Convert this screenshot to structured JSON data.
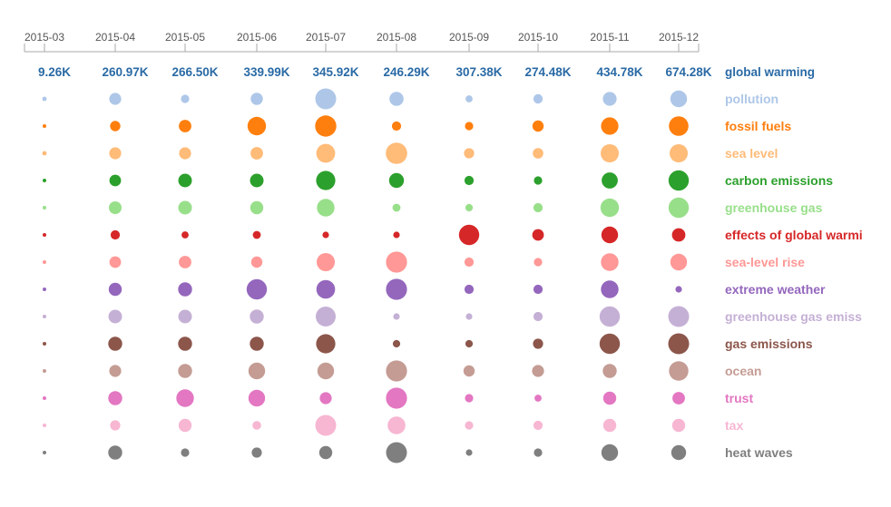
{
  "chart_data": {
    "type": "scatter",
    "x": [
      "2015-03",
      "2015-04",
      "2015-05",
      "2015-06",
      "2015-07",
      "2015-08",
      "2015-09",
      "2015-10",
      "2015-11",
      "2015-12"
    ],
    "totals_label": "global warming",
    "totals": [
      "9.26K",
      "260.97K",
      "266.50K",
      "339.99K",
      "345.92K",
      "246.29K",
      "307.38K",
      "274.48K",
      "434.78K",
      "674.28K"
    ],
    "series": [
      {
        "name": "pollution",
        "color": "#aec7e8",
        "values": [
          2.4,
          6.6,
          4.6,
          6.7,
          11.5,
          7.8,
          3.9,
          5.2,
          7.6,
          9.2
        ]
      },
      {
        "name": "fossil fuels",
        "color": "#ff7f0e",
        "values": [
          2,
          5.7,
          6.9,
          10.2,
          11.7,
          5.1,
          4.6,
          6.2,
          9.6,
          10.8
        ]
      },
      {
        "name": "sea level",
        "color": "#ffbb78",
        "values": [
          2.4,
          6.6,
          6.6,
          6.9,
          10.4,
          11.8,
          5.6,
          5.8,
          10,
          10
        ]
      },
      {
        "name": "carbon emissions",
        "color": "#2ca02c",
        "values": [
          2,
          6.4,
          7.5,
          7.5,
          10.6,
          8.2,
          5.1,
          4.6,
          8.9,
          11.2
        ]
      },
      {
        "name": "greenhouse gas",
        "color": "#98df8a",
        "values": [
          2,
          7,
          7.5,
          7.2,
          9.7,
          4.4,
          4.1,
          5.1,
          10.2,
          11.2
        ]
      },
      {
        "name": "effects of global warming",
        "color": "#d62728",
        "values": [
          2,
          5.1,
          3.9,
          4.4,
          3.6,
          3.6,
          11.2,
          6.4,
          9.2,
          7.4
        ]
      },
      {
        "name": "sea-level rise",
        "color": "#ff9896",
        "values": [
          2,
          6.4,
          6.9,
          6.2,
          10,
          11.6,
          5.1,
          4.6,
          9.7,
          9.2
        ]
      },
      {
        "name": "extreme weather",
        "color": "#9467bd",
        "values": [
          2,
          7.2,
          7.7,
          11.2,
          10.3,
          11.6,
          5.1,
          5.1,
          9.7,
          3.6
        ]
      },
      {
        "name": "greenhouse gas emissions",
        "color": "#c5b0d5",
        "values": [
          2,
          7.5,
          7.5,
          7.7,
          11,
          3.6,
          3.6,
          5.1,
          11.2,
          11.5
        ]
      },
      {
        "name": "gas emissions",
        "color": "#8c564b",
        "values": [
          2,
          7.7,
          7.7,
          7.7,
          10.6,
          4.1,
          4.1,
          5.6,
          11.2,
          11.5
        ]
      },
      {
        "name": "ocean",
        "color": "#c49c94",
        "values": [
          2,
          6.6,
          7.7,
          9.2,
          9.2,
          11.6,
          6.2,
          6.6,
          7.7,
          10.7
        ]
      },
      {
        "name": "trust",
        "color": "#e377c2",
        "values": [
          2,
          7.7,
          9.7,
          9.2,
          6.6,
          11.6,
          4.6,
          3.9,
          7.2,
          6.9
        ]
      },
      {
        "name": "tax",
        "color": "#f7b6d2",
        "values": [
          2,
          5.6,
          7.2,
          4.8,
          11.5,
          9.8,
          4.6,
          5.1,
          7.2,
          7.2
        ]
      },
      {
        "name": "heat waves",
        "color": "#7f7f7f",
        "values": [
          2,
          7.7,
          4.6,
          5.6,
          7.2,
          11.5,
          3.6,
          4.6,
          9.2,
          8.2
        ]
      }
    ]
  }
}
